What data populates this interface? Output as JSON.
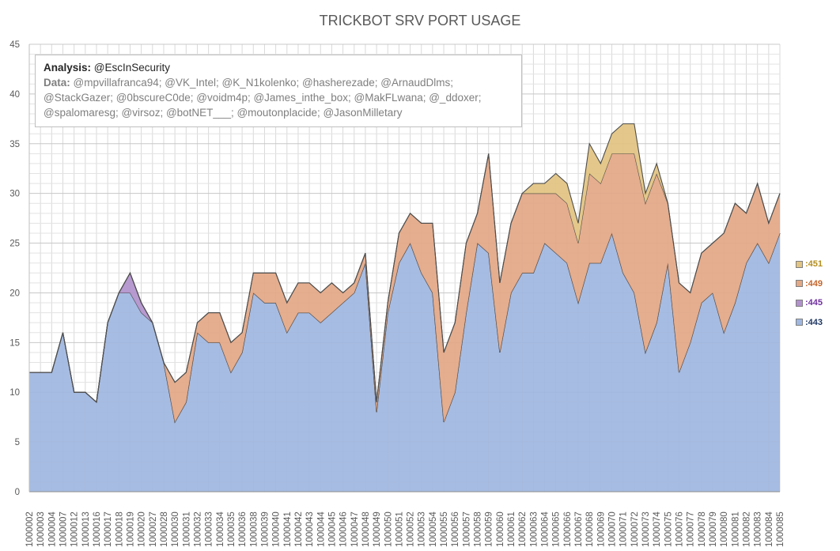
{
  "chart_data": {
    "type": "area",
    "stacked": true,
    "title": "TRICKBOT SRV PORT USAGE",
    "annotation": {
      "analysis_label": "Analysis:",
      "analysis_value": "@EscInSecurity",
      "data_label": "Data:",
      "data_value": "@mpvillafranca94; @VK_Intel; @K_N1kolenko; @hasherezade; @ArnaudDlms; @StackGazer; @0bscureC0de; @voidm4p; @James_inthe_box; @MakFLwana; @_ddoxer; @spalomaresg; @virsoz; @botNET___; @moutonplacide; @JasonMilletary"
    },
    "ylim": [
      0,
      45
    ],
    "yticks": [
      0,
      5,
      10,
      15,
      20,
      25,
      30,
      35,
      40,
      45
    ],
    "grid": true,
    "legend_position": "right",
    "categories": [
      "1000002",
      "1000003",
      "1000004",
      "1000007",
      "1000012",
      "1000013",
      "1000016",
      "1000017",
      "1000018",
      "1000019",
      "1000020",
      "1000027",
      "1000028",
      "1000030",
      "1000031",
      "1000032",
      "1000033",
      "1000034",
      "1000035",
      "1000036",
      "1000038",
      "1000039",
      "1000040",
      "1000041",
      "1000042",
      "1000043",
      "1000044",
      "1000045",
      "1000046",
      "1000047",
      "1000048",
      "1000049",
      "1000050",
      "1000051",
      "1000052",
      "1000053",
      "1000054",
      "1000055",
      "1000056",
      "1000057",
      "1000058",
      "1000059",
      "1000060",
      "1000061",
      "1000062",
      "1000063",
      "1000064",
      "1000065",
      "1000066",
      "1000067",
      "1000068",
      "1000069",
      "1000070",
      "1000071",
      "1000072",
      "1000073",
      "1000074",
      "1000075",
      "1000076",
      "1000077",
      "1000078",
      "1000079",
      "1000080",
      "1000081",
      "1000082",
      "1000083",
      "1000084",
      "1000085"
    ],
    "series": [
      {
        "name": ":443",
        "color": "#a0b7e0",
        "values": [
          12,
          12,
          12,
          16,
          10,
          10,
          9,
          17,
          20,
          20,
          18,
          17,
          13,
          7,
          9,
          16,
          15,
          15,
          12,
          14,
          20,
          19,
          19,
          16,
          18,
          18,
          17,
          18,
          19,
          20,
          23,
          8,
          18,
          23,
          25,
          22,
          20,
          7,
          10,
          18,
          25,
          24,
          14,
          20,
          22,
          22,
          25,
          24,
          23,
          19,
          23,
          23,
          26,
          22,
          20,
          14,
          17,
          23,
          12,
          15,
          19,
          20,
          16,
          19,
          23,
          25,
          23,
          26
        ]
      },
      {
        "name": ":445",
        "color": "#b292cc",
        "values": [
          0,
          0,
          0,
          0,
          0,
          0,
          0,
          0,
          0,
          2,
          1,
          0,
          0,
          0,
          0,
          0,
          0,
          0,
          0,
          0,
          0,
          0,
          0,
          0,
          0,
          0,
          0,
          0,
          0,
          0,
          0,
          0,
          0,
          0,
          0,
          0,
          0,
          0,
          0,
          0,
          0,
          0,
          0,
          0,
          0,
          0,
          0,
          0,
          0,
          0,
          0,
          0,
          0,
          0,
          0,
          0,
          0,
          0,
          0,
          0,
          0,
          0,
          0,
          0,
          0,
          0,
          0,
          0
        ]
      },
      {
        "name": ":449",
        "color": "#e3a886",
        "values": [
          0,
          0,
          0,
          0,
          0,
          0,
          0,
          0,
          0,
          0,
          0,
          0,
          0,
          4,
          3,
          1,
          3,
          3,
          3,
          2,
          2,
          3,
          3,
          3,
          3,
          3,
          3,
          3,
          1,
          1,
          1,
          1,
          1,
          3,
          3,
          5,
          7,
          7,
          7,
          7,
          3,
          10,
          7,
          7,
          8,
          8,
          5,
          6,
          6,
          6,
          9,
          8,
          8,
          12,
          14,
          15,
          15,
          6,
          9,
          5,
          5,
          5,
          10,
          10,
          5,
          6,
          4,
          4
        ]
      },
      {
        "name": ":451",
        "color": "#e2c482",
        "values": [
          0,
          0,
          0,
          0,
          0,
          0,
          0,
          0,
          0,
          0,
          0,
          0,
          0,
          0,
          0,
          0,
          0,
          0,
          0,
          0,
          0,
          0,
          0,
          0,
          0,
          0,
          0,
          0,
          0,
          0,
          0,
          0,
          0,
          0,
          0,
          0,
          0,
          0,
          0,
          0,
          0,
          0,
          0,
          0,
          0,
          1,
          1,
          2,
          2,
          2,
          3,
          2,
          2,
          3,
          3,
          1,
          1,
          0,
          0,
          0,
          0,
          0,
          0,
          0,
          0,
          0,
          0,
          0
        ]
      }
    ],
    "legend_order": [
      ":451",
      ":449",
      ":445",
      ":443"
    ],
    "legend_text_colors": {
      ":451": "#b58e1e",
      ":449": "#c5652a",
      ":445": "#7030a0",
      ":443": "#1f3864"
    }
  }
}
